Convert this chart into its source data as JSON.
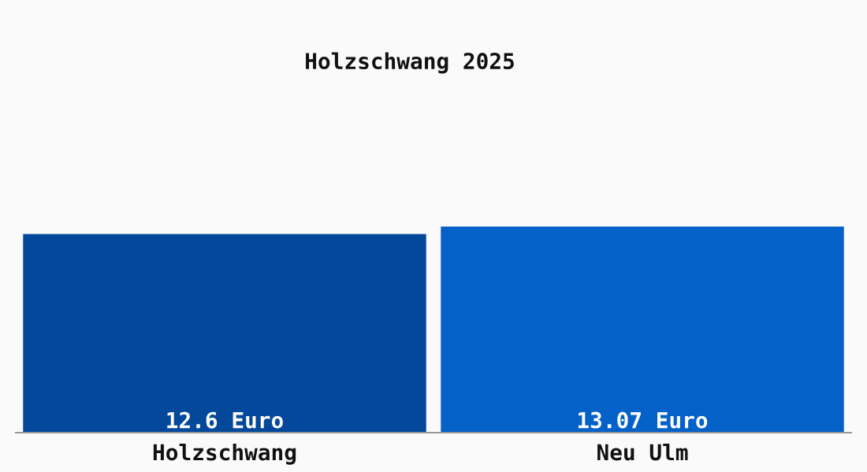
{
  "chart_data": {
    "type": "bar",
    "title": "Holzschwang 2025",
    "categories": [
      "Holzschwang",
      "Neu Ulm"
    ],
    "values": [
      12.6,
      13.07
    ],
    "colors": [
      "#03489a",
      "#0461c8"
    ],
    "value_labels": [
      "12.6 Euro",
      "13.07 Euro"
    ],
    "grid": false,
    "legend": false
  }
}
